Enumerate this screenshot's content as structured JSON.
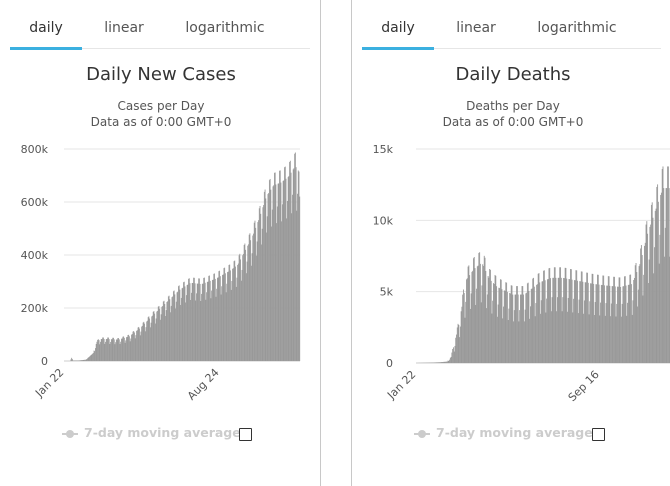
{
  "tabs_left": [
    "daily",
    "linear",
    "logarithmic"
  ],
  "tabs_right": [
    "daily",
    "linear",
    "logarithmic"
  ],
  "legend_label": "7-day moving average",
  "colors": {
    "bar": "#999999",
    "accent": "#3bb0e0",
    "grid": "#e6e6e6",
    "legend": "#cccccc"
  },
  "chart_data": [
    {
      "type": "bar",
      "title": "Daily New Cases",
      "subtitle_lines": [
        "Cases per Day",
        "Data as of 0:00 GMT+0"
      ],
      "ylim": [
        0,
        800000
      ],
      "yticks": [
        0,
        200000,
        400000,
        600000,
        800000
      ],
      "ytick_labels": [
        "0",
        "200k",
        "400k",
        "600k",
        "800k"
      ],
      "xtick_labels": [
        {
          "label": "Jan 22",
          "index": 0
        },
        {
          "label": "Aug 24",
          "index": 215
        }
      ],
      "weekly_amplitude": 0.12,
      "anchors": [
        [
          0,
          0
        ],
        [
          8,
          0
        ],
        [
          10,
          12000
        ],
        [
          12,
          2000
        ],
        [
          20,
          2000
        ],
        [
          30,
          5000
        ],
        [
          40,
          30000
        ],
        [
          45,
          70000
        ],
        [
          50,
          80000
        ],
        [
          60,
          80000
        ],
        [
          75,
          78000
        ],
        [
          90,
          90000
        ],
        [
          105,
          120000
        ],
        [
          120,
          160000
        ],
        [
          140,
          210000
        ],
        [
          160,
          260000
        ],
        [
          175,
          285000
        ],
        [
          190,
          280000
        ],
        [
          210,
          300000
        ],
        [
          230,
          330000
        ],
        [
          240,
          350000
        ],
        [
          250,
          400000
        ],
        [
          260,
          450000
        ],
        [
          270,
          520000
        ],
        [
          280,
          600000
        ],
        [
          290,
          640000
        ],
        [
          300,
          650000
        ],
        [
          310,
          670000
        ],
        [
          320,
          710000
        ],
        [
          325,
          690000
        ],
        [
          326,
          560000
        ]
      ]
    },
    {
      "type": "bar",
      "title": "Daily Deaths",
      "subtitle_lines": [
        "Deaths per Day",
        "Data as of 0:00 GMT+0"
      ],
      "ylim": [
        0,
        15000
      ],
      "yticks": [
        0,
        5000,
        10000,
        15000
      ],
      "ytick_labels": [
        "0",
        "5k",
        "10k",
        "15k"
      ],
      "xtick_labels": [
        {
          "label": "Jan 22",
          "index": 0
        },
        {
          "label": "Sep 16",
          "index": 238
        }
      ],
      "weekly_amplitude": 0.22,
      "anchors": [
        [
          0,
          0
        ],
        [
          15,
          20
        ],
        [
          30,
          50
        ],
        [
          40,
          100
        ],
        [
          45,
          400
        ],
        [
          55,
          2500
        ],
        [
          65,
          5500
        ],
        [
          75,
          6200
        ],
        [
          85,
          6600
        ],
        [
          95,
          5500
        ],
        [
          105,
          5000
        ],
        [
          125,
          4500
        ],
        [
          140,
          4500
        ],
        [
          160,
          5300
        ],
        [
          175,
          5600
        ],
        [
          190,
          5600
        ],
        [
          210,
          5400
        ],
        [
          230,
          5200
        ],
        [
          245,
          5100
        ],
        [
          265,
          5000
        ],
        [
          280,
          5200
        ],
        [
          290,
          6500
        ],
        [
          300,
          8500
        ],
        [
          310,
          10000
        ],
        [
          320,
          11500
        ],
        [
          330,
          11500
        ]
      ]
    }
  ]
}
